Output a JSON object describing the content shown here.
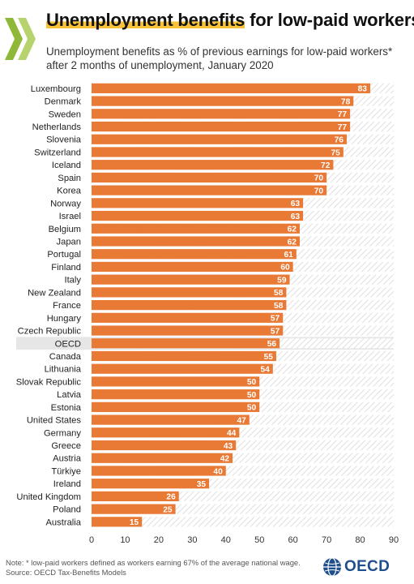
{
  "title_highlight": "Unemployment benefits",
  "title_rest": " for low-paid workers",
  "subtitle": "Unemployment benefits as % of previous earnings for low-paid workers* after 2 months of unemployment, January 2020",
  "note": "Note: * low-paid workers defined as workers earning 67% of the average national wage.",
  "source": "Source: OECD Tax-Benefits Models",
  "logo_text": "OECD",
  "colors": {
    "bar": "#e87a35",
    "hatch": "#d7d7d7",
    "highlight_row": "#e6e6e6",
    "title_highlight": "#f7c23a",
    "logo_chevron_dark": "#8fb839",
    "logo_chevron_light": "#b7d36e",
    "oecd_blue": "#1f4e8c"
  },
  "chart_data": {
    "type": "bar",
    "orientation": "horizontal",
    "categories": [
      "Luxembourg",
      "Denmark",
      "Sweden",
      "Netherlands",
      "Slovenia",
      "Switzerland",
      "Iceland",
      "Spain",
      "Korea",
      "Norway",
      "Israel",
      "Belgium",
      "Japan",
      "Portugal",
      "Finland",
      "Italy",
      "New Zealand",
      "France",
      "Hungary",
      "Czech Republic",
      "OECD",
      "Canada",
      "Lithuania",
      "Slovak Republic",
      "Latvia",
      "Estonia",
      "United States",
      "Germany",
      "Greece",
      "Austria",
      "Türkiye",
      "Ireland",
      "United Kingdom",
      "Poland",
      "Australia"
    ],
    "values": [
      83,
      78,
      77,
      77,
      76,
      75,
      72,
      70,
      70,
      63,
      63,
      62,
      62,
      61,
      60,
      59,
      58,
      58,
      57,
      57,
      56,
      55,
      54,
      50,
      50,
      50,
      47,
      44,
      43,
      42,
      40,
      35,
      26,
      25,
      15
    ],
    "highlight": "OECD",
    "xlim": [
      0,
      90
    ],
    "xticks": [
      0,
      10,
      20,
      30,
      40,
      50,
      60,
      70,
      80,
      90
    ],
    "grid": false,
    "data_labels": true
  }
}
